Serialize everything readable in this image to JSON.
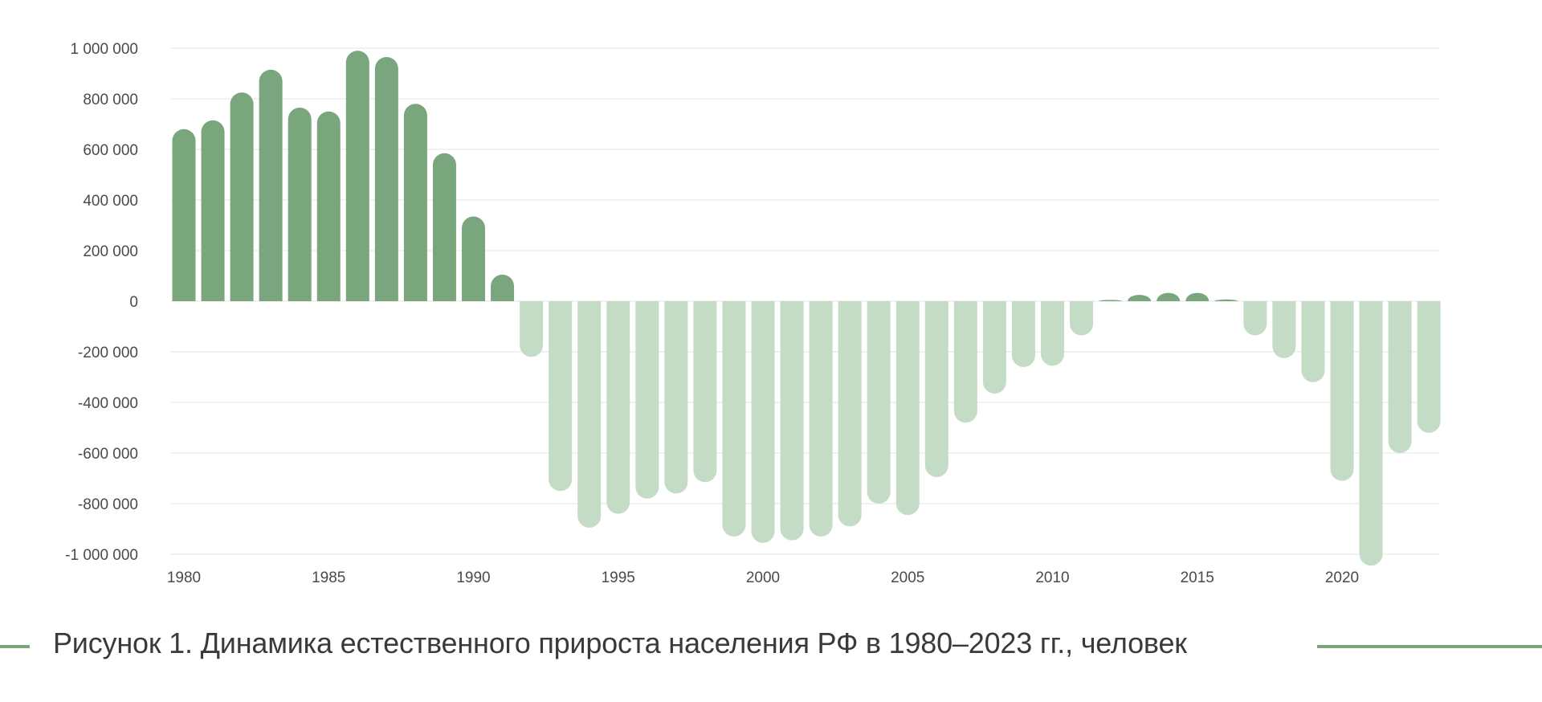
{
  "caption": "Рисунок 1. Динамика естественного прироста населения РФ в 1980–2023 гг., человек",
  "colors": {
    "positive": "#7aa67e",
    "negative": "#c4dcc6",
    "grid": "#e6e6e6",
    "caption_line": "#7aa67e"
  },
  "chart_data": {
    "type": "bar",
    "title": "",
    "xlabel": "",
    "ylabel": "",
    "ylim": [
      -1000000,
      1000000
    ],
    "y_ticks": [
      1000000,
      800000,
      600000,
      400000,
      200000,
      0,
      -200000,
      -400000,
      -600000,
      -800000,
      -1000000
    ],
    "y_tick_labels": [
      "1 000 000",
      "800 000",
      "600 000",
      "400 000",
      "200 000",
      "0",
      "-200 000",
      "-400 000",
      "-600 000",
      "-800 000",
      "-1 000 000"
    ],
    "x_tick_labels": [
      "1980",
      "1985",
      "1990",
      "1995",
      "2000",
      "2005",
      "2010",
      "2015",
      "2020"
    ],
    "grid": true,
    "categories": [
      1980,
      1981,
      1982,
      1983,
      1984,
      1985,
      1986,
      1987,
      1988,
      1989,
      1990,
      1991,
      1992,
      1993,
      1994,
      1995,
      1996,
      1997,
      1998,
      1999,
      2000,
      2001,
      2002,
      2003,
      2004,
      2005,
      2006,
      2007,
      2008,
      2009,
      2010,
      2011,
      2012,
      2013,
      2014,
      2015,
      2016,
      2017,
      2018,
      2019,
      2020,
      2021,
      2022,
      2023
    ],
    "values": [
      680000,
      715000,
      825000,
      915000,
      765000,
      750000,
      990000,
      965000,
      780000,
      585000,
      335000,
      105000,
      -220000,
      -750000,
      -895000,
      -840000,
      -780000,
      -760000,
      -715000,
      -930000,
      -955000,
      -945000,
      -930000,
      -890000,
      -800000,
      -845000,
      -695000,
      -480000,
      -365000,
      -260000,
      -255000,
      -135000,
      5000,
      25000,
      33000,
      33000,
      7000,
      -135000,
      -225000,
      -320000,
      -710000,
      -1045000,
      -600000,
      -520000
    ]
  }
}
